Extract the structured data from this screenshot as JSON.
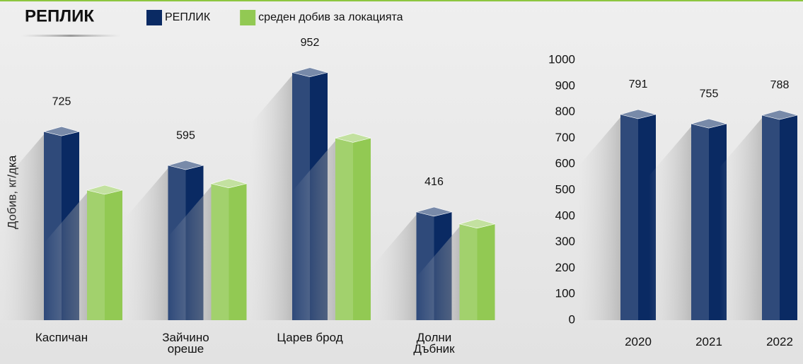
{
  "chart_data": [
    {
      "type": "bar3d",
      "title": "РЕПЛИК",
      "y_label": "Добив, кг/дка",
      "categories": [
        "Каспичан",
        "Зайчино ореше",
        "Царев брод",
        "Долни Дъбник"
      ],
      "series": [
        {
          "name": "РЕПЛИК",
          "color": "#0a2a63",
          "show_values": true,
          "values": [
            725,
            595,
            952,
            416
          ]
        },
        {
          "name": "среден добив за локацията",
          "color": "#92c953",
          "show_values": false,
          "values": [
            500,
            525,
            700,
            370
          ]
        }
      ],
      "ylim": [
        0,
        1000
      ]
    },
    {
      "type": "bar3d",
      "categories": [
        "2020",
        "2021",
        "2022"
      ],
      "series": [
        {
          "color": "#0a2a63",
          "show_values": true,
          "values": [
            791,
            755,
            788
          ]
        }
      ],
      "ylim": [
        0,
        1000
      ],
      "yticks": [
        0,
        100,
        200,
        300,
        400,
        500,
        600,
        700,
        800,
        900,
        1000
      ]
    }
  ]
}
